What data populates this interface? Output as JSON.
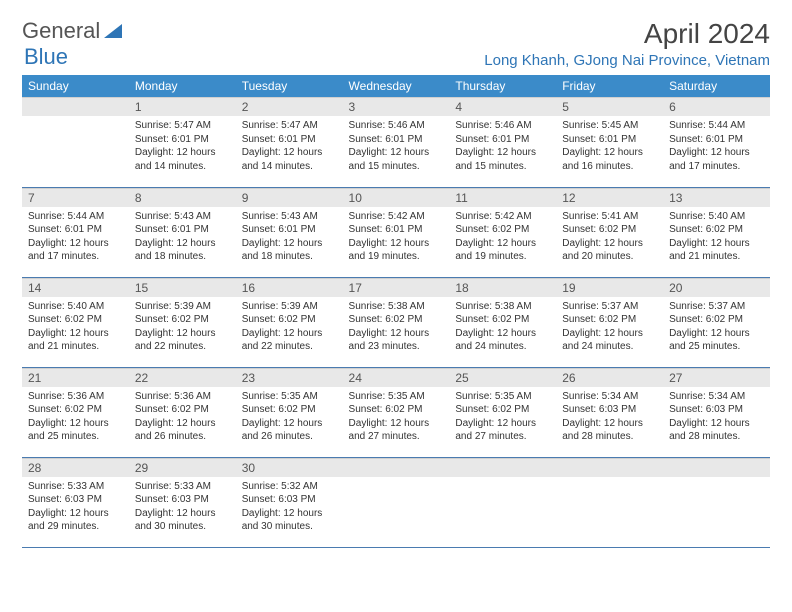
{
  "logo": {
    "text1": "General",
    "text2": "Blue"
  },
  "title": "April 2024",
  "location": "Long Khanh, GJong Nai Province, Vietnam",
  "colors": {
    "header_bg": "#3b8bc9",
    "header_text": "#ffffff",
    "daynum_bg": "#e8e8e8",
    "accent": "#2e75b6",
    "row_border": "#4a7bb0"
  },
  "day_names": [
    "Sunday",
    "Monday",
    "Tuesday",
    "Wednesday",
    "Thursday",
    "Friday",
    "Saturday"
  ],
  "weeks": [
    [
      null,
      {
        "n": "1",
        "sr": "5:47 AM",
        "ss": "6:01 PM",
        "dl": "12 hours and 14 minutes."
      },
      {
        "n": "2",
        "sr": "5:47 AM",
        "ss": "6:01 PM",
        "dl": "12 hours and 14 minutes."
      },
      {
        "n": "3",
        "sr": "5:46 AM",
        "ss": "6:01 PM",
        "dl": "12 hours and 15 minutes."
      },
      {
        "n": "4",
        "sr": "5:46 AM",
        "ss": "6:01 PM",
        "dl": "12 hours and 15 minutes."
      },
      {
        "n": "5",
        "sr": "5:45 AM",
        "ss": "6:01 PM",
        "dl": "12 hours and 16 minutes."
      },
      {
        "n": "6",
        "sr": "5:44 AM",
        "ss": "6:01 PM",
        "dl": "12 hours and 17 minutes."
      }
    ],
    [
      {
        "n": "7",
        "sr": "5:44 AM",
        "ss": "6:01 PM",
        "dl": "12 hours and 17 minutes."
      },
      {
        "n": "8",
        "sr": "5:43 AM",
        "ss": "6:01 PM",
        "dl": "12 hours and 18 minutes."
      },
      {
        "n": "9",
        "sr": "5:43 AM",
        "ss": "6:01 PM",
        "dl": "12 hours and 18 minutes."
      },
      {
        "n": "10",
        "sr": "5:42 AM",
        "ss": "6:01 PM",
        "dl": "12 hours and 19 minutes."
      },
      {
        "n": "11",
        "sr": "5:42 AM",
        "ss": "6:02 PM",
        "dl": "12 hours and 19 minutes."
      },
      {
        "n": "12",
        "sr": "5:41 AM",
        "ss": "6:02 PM",
        "dl": "12 hours and 20 minutes."
      },
      {
        "n": "13",
        "sr": "5:40 AM",
        "ss": "6:02 PM",
        "dl": "12 hours and 21 minutes."
      }
    ],
    [
      {
        "n": "14",
        "sr": "5:40 AM",
        "ss": "6:02 PM",
        "dl": "12 hours and 21 minutes."
      },
      {
        "n": "15",
        "sr": "5:39 AM",
        "ss": "6:02 PM",
        "dl": "12 hours and 22 minutes."
      },
      {
        "n": "16",
        "sr": "5:39 AM",
        "ss": "6:02 PM",
        "dl": "12 hours and 22 minutes."
      },
      {
        "n": "17",
        "sr": "5:38 AM",
        "ss": "6:02 PM",
        "dl": "12 hours and 23 minutes."
      },
      {
        "n": "18",
        "sr": "5:38 AM",
        "ss": "6:02 PM",
        "dl": "12 hours and 24 minutes."
      },
      {
        "n": "19",
        "sr": "5:37 AM",
        "ss": "6:02 PM",
        "dl": "12 hours and 24 minutes."
      },
      {
        "n": "20",
        "sr": "5:37 AM",
        "ss": "6:02 PM",
        "dl": "12 hours and 25 minutes."
      }
    ],
    [
      {
        "n": "21",
        "sr": "5:36 AM",
        "ss": "6:02 PM",
        "dl": "12 hours and 25 minutes."
      },
      {
        "n": "22",
        "sr": "5:36 AM",
        "ss": "6:02 PM",
        "dl": "12 hours and 26 minutes."
      },
      {
        "n": "23",
        "sr": "5:35 AM",
        "ss": "6:02 PM",
        "dl": "12 hours and 26 minutes."
      },
      {
        "n": "24",
        "sr": "5:35 AM",
        "ss": "6:02 PM",
        "dl": "12 hours and 27 minutes."
      },
      {
        "n": "25",
        "sr": "5:35 AM",
        "ss": "6:02 PM",
        "dl": "12 hours and 27 minutes."
      },
      {
        "n": "26",
        "sr": "5:34 AM",
        "ss": "6:03 PM",
        "dl": "12 hours and 28 minutes."
      },
      {
        "n": "27",
        "sr": "5:34 AM",
        "ss": "6:03 PM",
        "dl": "12 hours and 28 minutes."
      }
    ],
    [
      {
        "n": "28",
        "sr": "5:33 AM",
        "ss": "6:03 PM",
        "dl": "12 hours and 29 minutes."
      },
      {
        "n": "29",
        "sr": "5:33 AM",
        "ss": "6:03 PM",
        "dl": "12 hours and 30 minutes."
      },
      {
        "n": "30",
        "sr": "5:32 AM",
        "ss": "6:03 PM",
        "dl": "12 hours and 30 minutes."
      },
      null,
      null,
      null,
      null
    ]
  ],
  "labels": {
    "sunrise": "Sunrise:",
    "sunset": "Sunset:",
    "daylight": "Daylight:"
  }
}
